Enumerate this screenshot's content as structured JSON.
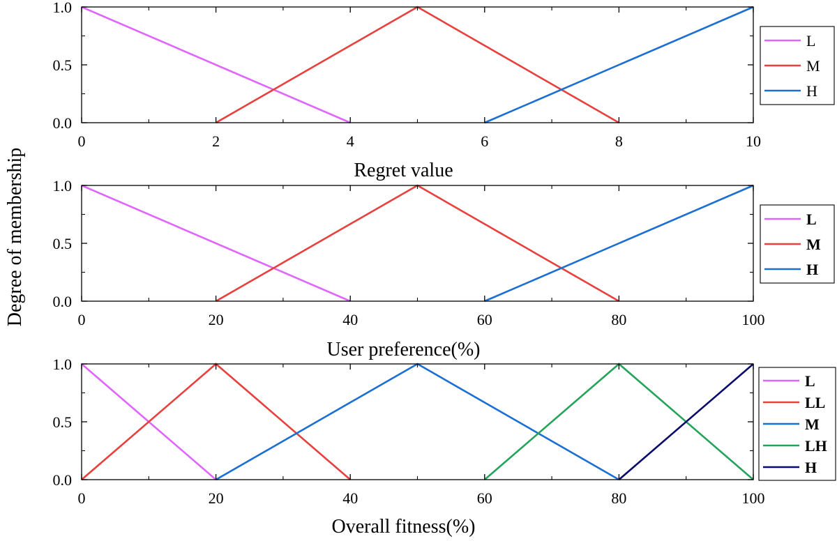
{
  "ylabel": "Degree of membership",
  "chart_data": [
    {
      "type": "line",
      "xlabel": "Regret value",
      "xlim": [
        0,
        10
      ],
      "ylim": [
        0,
        1
      ],
      "xticks": [
        "0",
        "2",
        "4",
        "6",
        "8",
        "10"
      ],
      "yticks": [
        "0.0",
        "0.5",
        "1.0"
      ],
      "legend_position": "right",
      "legend_bold": false,
      "series": [
        {
          "name": "L",
          "color": "#e066ff",
          "x": [
            0,
            4
          ],
          "y": [
            1,
            0
          ]
        },
        {
          "name": "M",
          "color": "#e8403c",
          "x": [
            2,
            5,
            8
          ],
          "y": [
            0,
            1,
            0
          ]
        },
        {
          "name": "H",
          "color": "#1a6fd4",
          "x": [
            6,
            10
          ],
          "y": [
            0,
            1
          ]
        }
      ]
    },
    {
      "type": "line",
      "xlabel": "User preference(%)",
      "xlim": [
        0,
        100
      ],
      "ylim": [
        0,
        1
      ],
      "xticks": [
        "0",
        "20",
        "40",
        "60",
        "80",
        "100"
      ],
      "yticks": [
        "0.0",
        "0.5",
        "1.0"
      ],
      "legend_position": "right",
      "legend_bold": true,
      "series": [
        {
          "name": "L",
          "color": "#e066ff",
          "x": [
            0,
            40
          ],
          "y": [
            1,
            0
          ]
        },
        {
          "name": "M",
          "color": "#e8403c",
          "x": [
            20,
            50,
            80
          ],
          "y": [
            0,
            1,
            0
          ]
        },
        {
          "name": "H",
          "color": "#1a6fd4",
          "x": [
            60,
            100
          ],
          "y": [
            0,
            1
          ]
        }
      ]
    },
    {
      "type": "line",
      "xlabel": "Overall fitness(%)",
      "xlim": [
        0,
        100
      ],
      "ylim": [
        0,
        1
      ],
      "xticks": [
        "0",
        "20",
        "40",
        "60",
        "80",
        "100"
      ],
      "yticks": [
        "0.0",
        "0.5",
        "1.0"
      ],
      "legend_position": "right",
      "legend_bold": true,
      "series": [
        {
          "name": "L",
          "color": "#e066ff",
          "x": [
            0,
            20
          ],
          "y": [
            1,
            0
          ]
        },
        {
          "name": "LL",
          "color": "#e8403c",
          "x": [
            0,
            20,
            40
          ],
          "y": [
            0,
            1,
            0
          ]
        },
        {
          "name": "M",
          "color": "#1a6fd4",
          "x": [
            20,
            50,
            80
          ],
          "y": [
            0,
            1,
            0
          ]
        },
        {
          "name": "LH",
          "color": "#24a35a",
          "x": [
            60,
            80,
            100
          ],
          "y": [
            0,
            1,
            0
          ]
        },
        {
          "name": "H",
          "color": "#0a0a6e",
          "x": [
            80,
            100
          ],
          "y": [
            0,
            1
          ]
        }
      ]
    }
  ]
}
